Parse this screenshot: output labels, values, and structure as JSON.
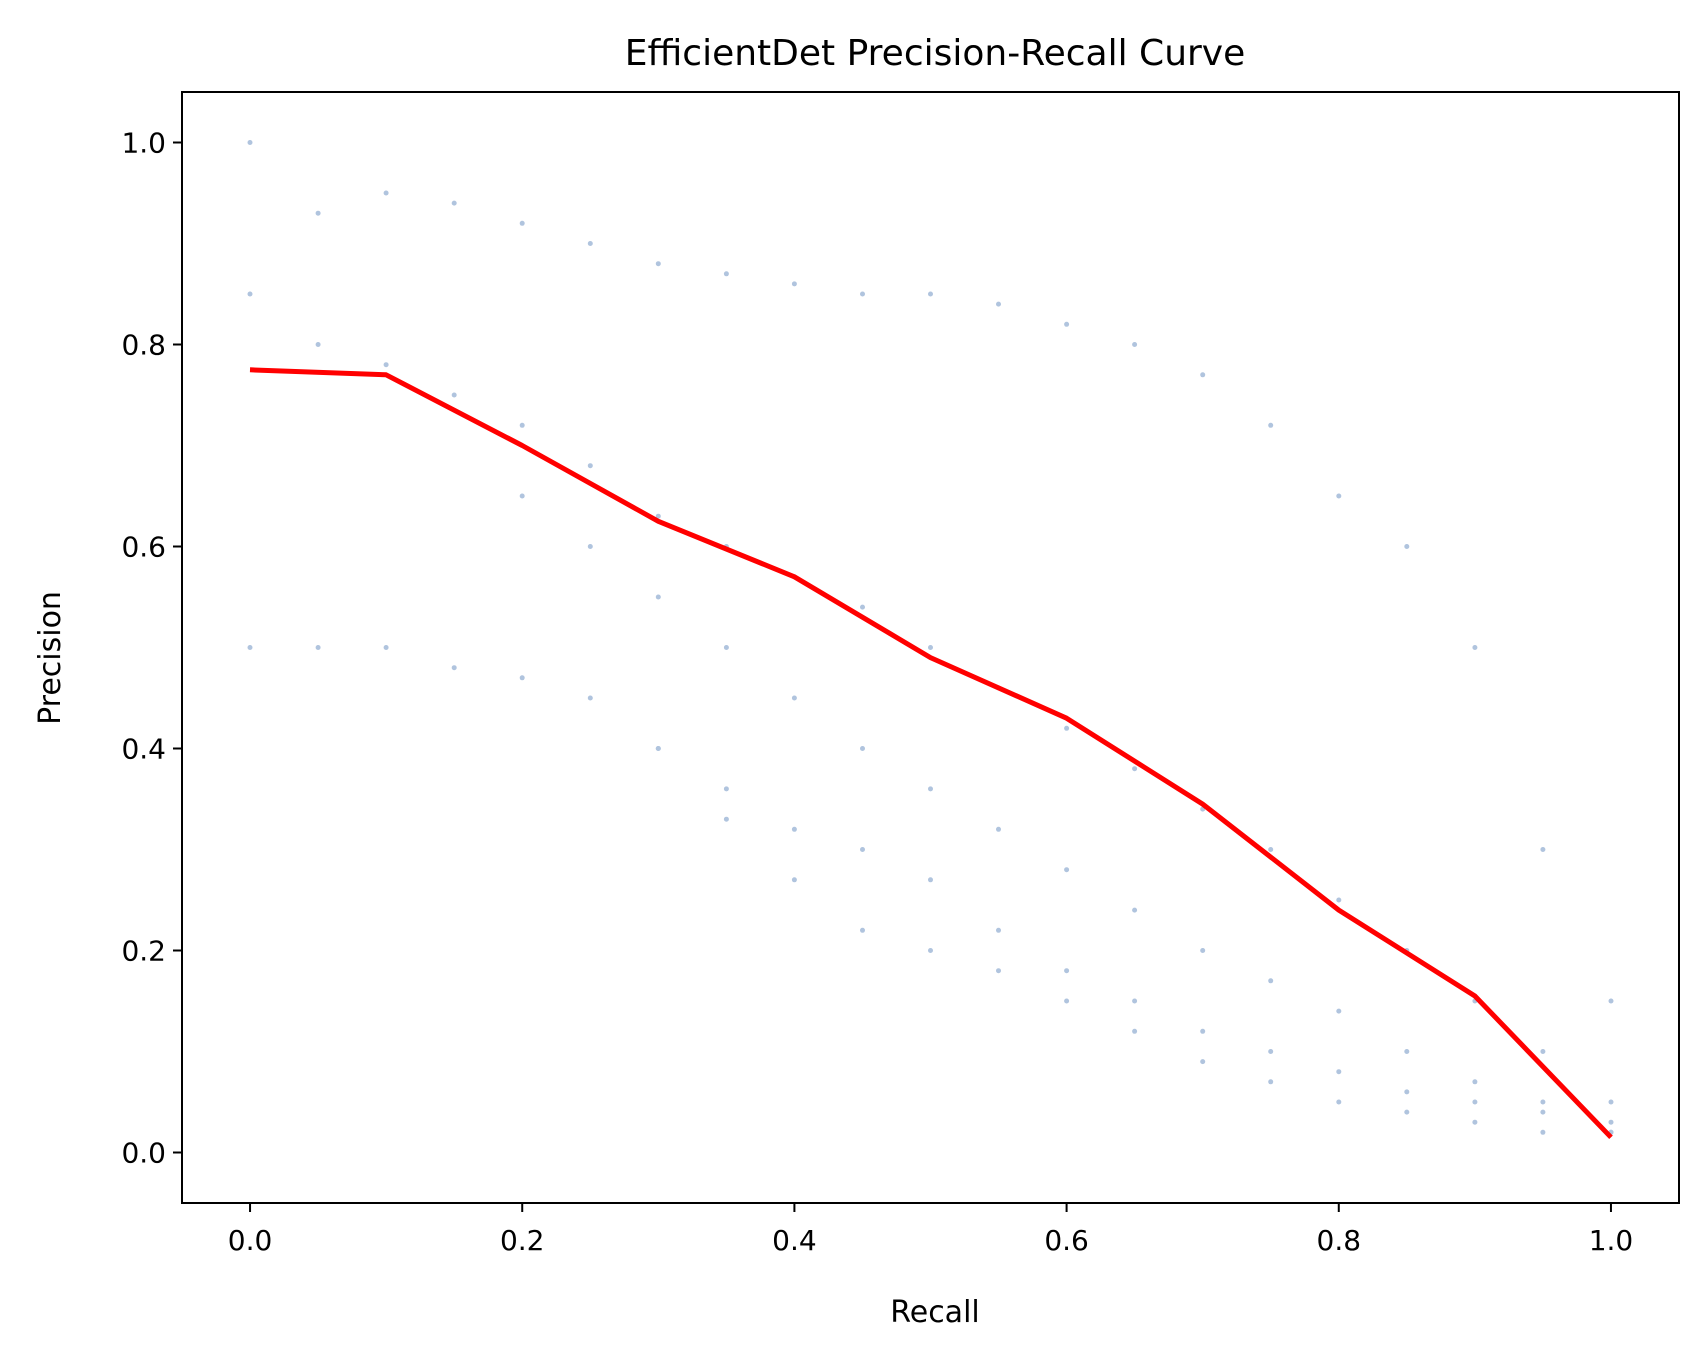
{
  "chart_data": {
    "type": "line",
    "title": "EfficientDet Precision-Recall Curve",
    "xlabel": "Recall",
    "ylabel": "Precision",
    "xlim": [
      -0.05,
      1.05
    ],
    "ylim": [
      -0.05,
      1.05
    ],
    "x_ticks": [
      0.0,
      0.2,
      0.4,
      0.6,
      0.8,
      1.0
    ],
    "x_tick_labels": [
      "0.0",
      "0.2",
      "0.4",
      "0.6",
      "0.8",
      "1.0"
    ],
    "y_ticks": [
      0.0,
      0.2,
      0.4,
      0.6,
      0.8,
      1.0
    ],
    "y_tick_labels": [
      "0.0",
      "0.2",
      "0.4",
      "0.6",
      "0.8",
      "1.0"
    ],
    "grid": false,
    "legend": "none",
    "colors": {
      "scatter": "#b0c4de",
      "mean_line": "#ff0000"
    },
    "mean_curve": {
      "x": [
        0.0,
        0.1,
        0.2,
        0.3,
        0.4,
        0.5,
        0.6,
        0.7,
        0.8,
        0.9,
        1.0
      ],
      "y": [
        0.775,
        0.77,
        0.7,
        0.625,
        0.57,
        0.49,
        0.43,
        0.345,
        0.24,
        0.155,
        0.015
      ]
    },
    "scatter_curves": [
      {
        "x": [
          0.0,
          0.05,
          0.1,
          0.15,
          0.2,
          0.25,
          0.3,
          0.35,
          0.4,
          0.45,
          0.5,
          0.55,
          0.6,
          0.65,
          0.7,
          0.75,
          0.8,
          0.85,
          0.9,
          0.95,
          1.0
        ],
        "y": [
          1.0,
          0.93,
          0.95,
          0.94,
          0.92,
          0.9,
          0.88,
          0.87,
          0.86,
          0.85,
          0.85,
          0.84,
          0.82,
          0.8,
          0.77,
          0.72,
          0.65,
          0.6,
          0.5,
          0.3,
          0.15
        ]
      },
      {
        "x": [
          0.0,
          0.05,
          0.1,
          0.15,
          0.2,
          0.25,
          0.3,
          0.35,
          0.4,
          0.45,
          0.5,
          0.55,
          0.6,
          0.65,
          0.7,
          0.75,
          0.8,
          0.85,
          0.9,
          0.95,
          1.0
        ],
        "y": [
          0.85,
          0.8,
          0.78,
          0.75,
          0.72,
          0.68,
          0.63,
          0.6,
          0.57,
          0.54,
          0.5,
          0.46,
          0.42,
          0.38,
          0.34,
          0.3,
          0.25,
          0.2,
          0.15,
          0.1,
          0.05
        ]
      },
      {
        "x": [
          0.0,
          0.05,
          0.1,
          0.15,
          0.2,
          0.25,
          0.3,
          0.35,
          0.4,
          0.45,
          0.5,
          0.55,
          0.6,
          0.65,
          0.7,
          0.75,
          0.8,
          0.85,
          0.9,
          0.95,
          1.0
        ],
        "y": [
          0.5,
          0.5,
          0.5,
          0.48,
          0.47,
          0.45,
          0.4,
          0.36,
          0.32,
          0.3,
          0.27,
          0.22,
          0.18,
          0.15,
          0.12,
          0.1,
          0.08,
          0.06,
          0.05,
          0.04,
          0.02
        ]
      },
      {
        "x": [
          0.2,
          0.25,
          0.3,
          0.35,
          0.4,
          0.45,
          0.5,
          0.55,
          0.6,
          0.65,
          0.7,
          0.75,
          0.8,
          0.85,
          0.9,
          0.95,
          1.0
        ],
        "y": [
          0.65,
          0.6,
          0.55,
          0.5,
          0.45,
          0.4,
          0.36,
          0.32,
          0.28,
          0.24,
          0.2,
          0.17,
          0.14,
          0.1,
          0.07,
          0.05,
          0.03
        ]
      },
      {
        "x": [
          0.3,
          0.35,
          0.4,
          0.45,
          0.5,
          0.55,
          0.6,
          0.65,
          0.7,
          0.75,
          0.8,
          0.85,
          0.9,
          0.95,
          1.0
        ],
        "y": [
          0.4,
          0.33,
          0.27,
          0.22,
          0.2,
          0.18,
          0.15,
          0.12,
          0.09,
          0.07,
          0.05,
          0.04,
          0.03,
          0.02,
          0.02
        ]
      }
    ]
  }
}
